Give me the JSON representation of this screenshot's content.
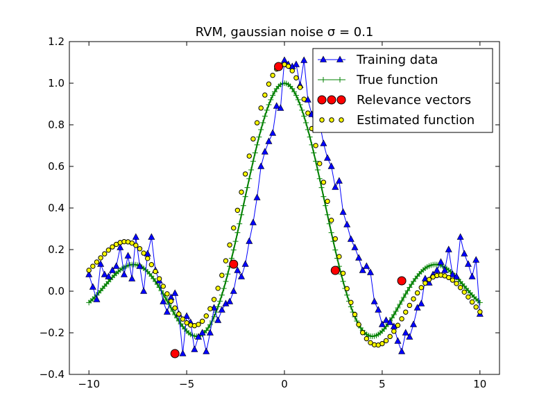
{
  "chart_data": {
    "type": "line",
    "title": "RVM, gaussian noise σ = 0.1",
    "xlabel": "",
    "ylabel": "",
    "xlim": [
      -11,
      11
    ],
    "ylim": [
      -0.4,
      1.2
    ],
    "xticks": [
      -10,
      -5,
      0,
      5,
      10
    ],
    "xtick_labels": [
      "−10",
      "−5",
      "0",
      "5",
      "10"
    ],
    "yticks": [
      -0.4,
      -0.2,
      0.0,
      0.2,
      0.4,
      0.6,
      0.8,
      1.0,
      1.2
    ],
    "ytick_labels": [
      "−0.4",
      "−0.2",
      "0.0",
      "0.2",
      "0.4",
      "0.6",
      "0.8",
      "1.0",
      "1.2"
    ],
    "grid": false,
    "legend_position": "top-right",
    "series": [
      {
        "name": "Training data",
        "style": "line-triangle",
        "color": "#0000ff",
        "x_start": -10,
        "x_end": 10,
        "count": 101,
        "values": [
          0.08,
          0.02,
          -0.04,
          0.13,
          0.08,
          0.07,
          0.1,
          0.12,
          0.21,
          0.08,
          0.17,
          0.06,
          0.26,
          0.12,
          0.0,
          0.18,
          0.26,
          0.1,
          0.05,
          -0.05,
          -0.1,
          -0.03,
          -0.01,
          -0.11,
          -0.3,
          -0.12,
          -0.15,
          -0.28,
          -0.22,
          -0.2,
          -0.29,
          -0.2,
          -0.08,
          -0.14,
          -0.09,
          -0.06,
          -0.05,
          0.0,
          0.1,
          0.07,
          0.13,
          0.24,
          0.33,
          0.45,
          0.6,
          0.67,
          0.72,
          0.76,
          0.89,
          0.88,
          1.11,
          1.09,
          1.08,
          1.09,
          0.99,
          1.11,
          0.92,
          0.85,
          0.78,
          0.81,
          0.71,
          0.64,
          0.6,
          0.5,
          0.53,
          0.38,
          0.32,
          0.25,
          0.21,
          0.16,
          0.1,
          0.12,
          0.09,
          -0.05,
          -0.09,
          -0.16,
          -0.14,
          -0.15,
          -0.17,
          -0.24,
          -0.29,
          -0.2,
          -0.22,
          -0.16,
          -0.08,
          -0.06,
          0.06,
          0.04,
          0.08,
          0.1,
          0.14,
          0.1,
          0.2,
          0.08,
          0.07,
          0.26,
          0.18,
          0.13,
          0.07,
          0.15,
          -0.11
        ]
      },
      {
        "name": "True function",
        "style": "line-plus",
        "color": "#008000",
        "formula": "sinc"
      },
      {
        "name": "Relevance vectors",
        "style": "big-red-circle",
        "color": "#ff0000",
        "points": [
          {
            "x": -5.6,
            "y": -0.3
          },
          {
            "x": -2.6,
            "y": 0.13
          },
          {
            "x": -0.3,
            "y": 1.08
          },
          {
            "x": 2.6,
            "y": 0.1
          },
          {
            "x": 6.0,
            "y": 0.05
          }
        ]
      },
      {
        "name": "Estimated function",
        "style": "small-yellow-circle",
        "color": "#ffff00"
      }
    ]
  }
}
